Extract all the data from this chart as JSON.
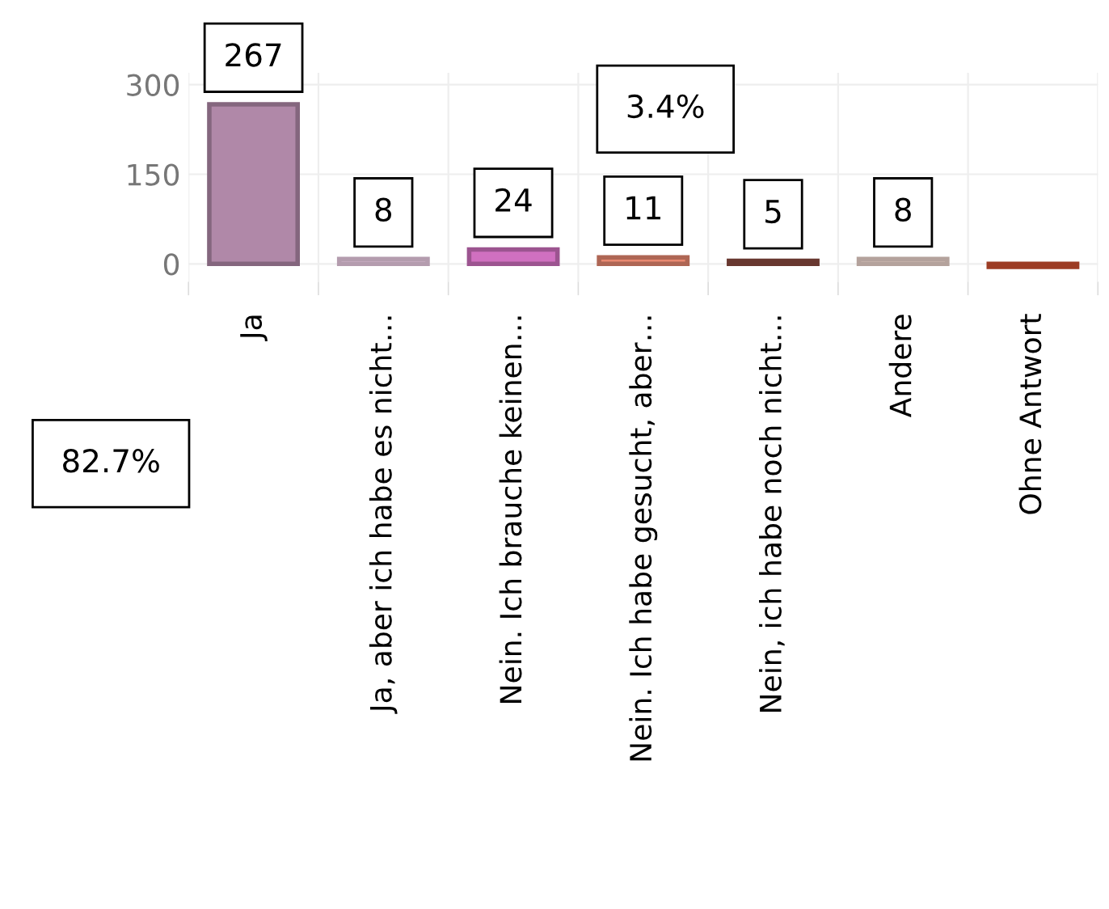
{
  "chart_data": {
    "type": "bar",
    "categories": [
      "Ja",
      "Ja, aber ich habe es nicht…",
      "Nein. Ich brauche keinen…",
      "Nein. Ich habe gesucht, aber…",
      "Nein, ich habe noch nicht…",
      "Andere",
      "Ohne Antwort"
    ],
    "values": [
      267,
      8,
      24,
      11,
      5,
      8,
      -5
    ],
    "colors": [
      "#b088a8",
      "#f0d0e8",
      "#d070c0",
      "#e88870",
      "#8a4a40",
      "#f0d8d0",
      "#d05030"
    ],
    "value_labels": [
      "267",
      "8",
      "24",
      "11",
      "5",
      "8",
      null
    ],
    "ylim": [
      -30,
      320
    ],
    "yticks": [
      0,
      150,
      300
    ],
    "grid": true,
    "annotations": [
      "82.7%",
      "3.4%"
    ]
  }
}
